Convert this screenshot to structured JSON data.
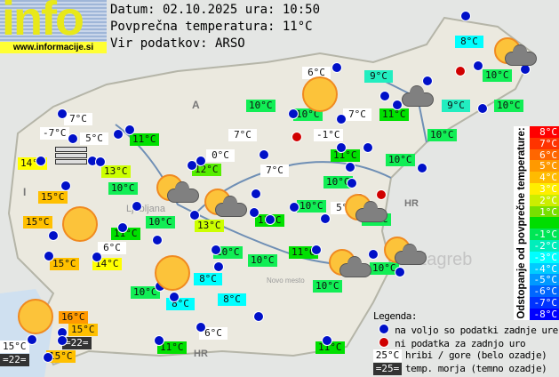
{
  "header": {
    "logo_text": "info",
    "logo_url": "www.informacije.si",
    "date_line": "Datum: 02.10.2025 ura: 10:50",
    "avg_line": "Povprečna temperatura: 11°C",
    "source_line": "Vir podatkov: ARSO"
  },
  "map_labels": [
    "A",
    "I",
    "HR",
    "HR",
    "Ljubljana",
    "Zagreb",
    "Novo mesto"
  ],
  "stations": [
    {
      "t": "8°C",
      "bg": "#00ffff"
    },
    {
      "t": "6°C",
      "bg": "#ffffff"
    },
    {
      "t": "9°C",
      "bg": "#22eec0"
    },
    {
      "t": "10°C",
      "bg": "#11ee55"
    },
    {
      "t": "10°C",
      "bg": "#11ee55"
    },
    {
      "t": "10°C",
      "bg": "#11ee55"
    },
    {
      "t": "7°C",
      "bg": "#ffffff"
    },
    {
      "t": "11°C",
      "bg": "#00e000"
    },
    {
      "t": "9°C",
      "bg": "#22eec0"
    },
    {
      "t": "10°C",
      "bg": "#11ee55"
    },
    {
      "t": "7°C",
      "bg": "#ffffff"
    },
    {
      "t": "-7°C",
      "bg": "#ffffff"
    },
    {
      "t": "5°C",
      "bg": "#ffffff"
    },
    {
      "t": "11°C",
      "bg": "#00e000"
    },
    {
      "t": "7°C",
      "bg": "#ffffff"
    },
    {
      "t": "-1°C",
      "bg": "#ffffff"
    },
    {
      "t": "10°C",
      "bg": "#11ee55"
    },
    {
      "t": "14°C",
      "bg": "#ffff00"
    },
    {
      "t": "0°C",
      "bg": "#ffffff"
    },
    {
      "t": "11°C",
      "bg": "#00e000"
    },
    {
      "t": "10°C",
      "bg": "#11ee55"
    },
    {
      "t": "13°C",
      "bg": "#ccff00"
    },
    {
      "t": "12°C",
      "bg": "#55ee00"
    },
    {
      "t": "7°C",
      "bg": "#ffffff"
    },
    {
      "t": "10°C",
      "bg": "#11ee55"
    },
    {
      "t": "10°C",
      "bg": "#11ee55"
    },
    {
      "t": "15°C",
      "bg": "#ffc000"
    },
    {
      "t": "10°C",
      "bg": "#11ee55"
    },
    {
      "t": "5°C",
      "bg": "#ffffff"
    },
    {
      "t": "15°C",
      "bg": "#ffc000"
    },
    {
      "t": "10°C",
      "bg": "#11ee55"
    },
    {
      "t": "13°C",
      "bg": "#ccff00"
    },
    {
      "t": "11°C",
      "bg": "#00e000"
    },
    {
      "t": "10°C",
      "bg": "#11ee55"
    },
    {
      "t": "11°C",
      "bg": "#00e000"
    },
    {
      "t": "6°C",
      "bg": "#ffffff"
    },
    {
      "t": "10°C",
      "bg": "#11ee55"
    },
    {
      "t": "10°C",
      "bg": "#11ee55"
    },
    {
      "t": "11°C",
      "bg": "#00e000"
    },
    {
      "t": "15°C",
      "bg": "#ffc000"
    },
    {
      "t": "14°C",
      "bg": "#ffff00"
    },
    {
      "t": "8°C",
      "bg": "#00ffff"
    },
    {
      "t": "10°C",
      "bg": "#11ee55"
    },
    {
      "t": "8°C",
      "bg": "#00ffff"
    },
    {
      "t": "8°C",
      "bg": "#00ffff"
    },
    {
      "t": "10°C",
      "bg": "#11ee55"
    },
    {
      "t": "10°C",
      "bg": "#11ee55"
    },
    {
      "t": "16°C",
      "bg": "#ff9900"
    },
    {
      "t": "15°C",
      "bg": "#ffc000"
    },
    {
      "t": "=22=",
      "bg": "#333333"
    },
    {
      "t": "6°C",
      "bg": "#ffffff"
    },
    {
      "t": "15°C",
      "bg": "#ffffff"
    },
    {
      "t": "=22=",
      "bg": "#333333"
    },
    {
      "t": "15°C",
      "bg": "#ffc000"
    },
    {
      "t": "11°C",
      "bg": "#00e000"
    },
    {
      "t": "11°C",
      "bg": "#00e000"
    }
  ],
  "weather_icons": [
    "sun",
    "sun",
    "sun",
    "sun",
    "partly-cloudy",
    "partly-cloudy",
    "partly-cloudy",
    "partly-cloudy",
    "partly-cloudy",
    "partly-cloudy",
    "cloudy",
    "fog"
  ],
  "scale": {
    "title": "Odstopanje od povprečne temperature:",
    "items": [
      {
        "t": "8°C",
        "c": "#ff0000"
      },
      {
        "t": "7°C",
        "c": "#ff3300"
      },
      {
        "t": "6°C",
        "c": "#ff6600"
      },
      {
        "t": "5°C",
        "c": "#ff9900"
      },
      {
        "t": "4°C",
        "c": "#ffbb00"
      },
      {
        "t": "3°C",
        "c": "#ffee00"
      },
      {
        "t": "2°C",
        "c": "#ccee00"
      },
      {
        "t": "1°C",
        "c": "#77e000"
      },
      {
        "t": "",
        "c": "#00dd00"
      },
      {
        "t": "-1°C",
        "c": "#00e655"
      },
      {
        "t": "-2°C",
        "c": "#00eebb"
      },
      {
        "t": "-3°C",
        "c": "#00ffff"
      },
      {
        "t": "-4°C",
        "c": "#00ccff"
      },
      {
        "t": "-5°C",
        "c": "#0099ff"
      },
      {
        "t": "-6°C",
        "c": "#0066ff"
      },
      {
        "t": "-7°C",
        "c": "#0033ff"
      },
      {
        "t": "-8°C",
        "c": "#0000ff"
      }
    ]
  },
  "legend": {
    "title": "Legenda:",
    "blue": "na voljo so podatki zadnje ure",
    "red": "ni podatka za zadnjo uro",
    "mountain_sample": "25°C",
    "mountain": "hribi / gore (belo ozadje)",
    "sea_sample": "=25=",
    "sea": "temp. morja (temno ozadje)"
  }
}
